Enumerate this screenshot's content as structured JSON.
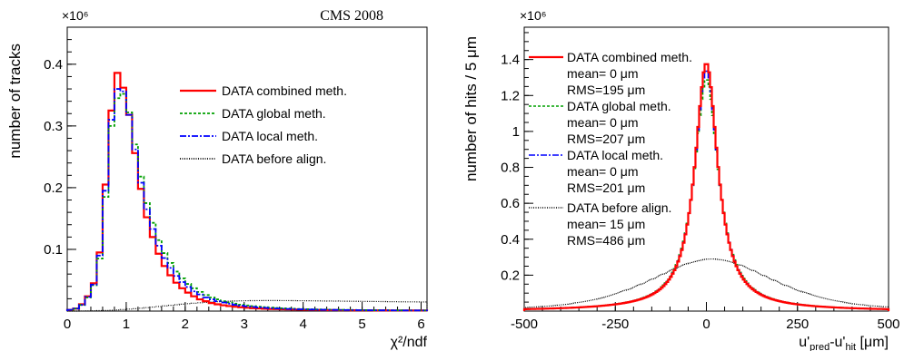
{
  "header": {
    "experiment_label": "CMS 2008"
  },
  "chart_data": [
    {
      "type": "line",
      "style": "histogram",
      "xlabel": "χ²/ndf",
      "ylabel": "number of tracks",
      "y_multiplier": "×10⁶",
      "xlim": [
        0,
        6.1
      ],
      "ylim": [
        0,
        0.46
      ],
      "xticks": [
        0,
        1,
        2,
        3,
        4,
        5,
        6
      ],
      "yticks": [
        0.1,
        0.2,
        0.3,
        0.4
      ],
      "legend_position": "top-right",
      "bin_edges": [
        0.0,
        0.1,
        0.2,
        0.3,
        0.4,
        0.5,
        0.6,
        0.7,
        0.8,
        0.9,
        1.0,
        1.1,
        1.2,
        1.3,
        1.4,
        1.5,
        1.6,
        1.7,
        1.8,
        1.9,
        2.0,
        2.1,
        2.2,
        2.3,
        2.4,
        2.5,
        2.6,
        2.7,
        2.8,
        2.9,
        3.0,
        3.1,
        3.2,
        3.3,
        3.4,
        3.5,
        3.6,
        3.7,
        3.8,
        3.9,
        4.0,
        4.1,
        4.2,
        4.3,
        4.4,
        4.5,
        4.6,
        4.7,
        4.8,
        4.9,
        5.0,
        5.1,
        5.2,
        5.3,
        5.4,
        5.5,
        5.6,
        5.7,
        5.8,
        5.9,
        6.0,
        6.1
      ],
      "series": [
        {
          "name": "DATA combined meth.",
          "color": "#ff0000",
          "dash": "solid",
          "values": [
            0.002,
            0.004,
            0.011,
            0.024,
            0.045,
            0.095,
            0.205,
            0.325,
            0.386,
            0.362,
            0.318,
            0.256,
            0.198,
            0.152,
            0.12,
            0.093,
            0.073,
            0.058,
            0.046,
            0.037,
            0.03,
            0.024,
            0.019,
            0.016,
            0.013,
            0.011,
            0.0095,
            0.0082,
            0.0071,
            0.0062,
            0.0054,
            0.0048,
            0.0043,
            0.0039,
            0.0035,
            0.0032,
            0.0029,
            0.0027,
            0.0025,
            0.0023,
            0.0021,
            0.002,
            0.0019,
            0.0018,
            0.0017,
            0.0016,
            0.0015,
            0.0014,
            0.0013,
            0.0013,
            0.0012,
            0.0012,
            0.0011,
            0.0011,
            0.001,
            0.001,
            0.001,
            0.0009,
            0.0009,
            0.0009,
            0.0009
          ]
        },
        {
          "name": "DATA global meth.",
          "color": "#00a000",
          "dash": "dot",
          "values": [
            0.002,
            0.004,
            0.01,
            0.022,
            0.042,
            0.085,
            0.185,
            0.3,
            0.345,
            0.352,
            0.322,
            0.27,
            0.218,
            0.175,
            0.143,
            0.115,
            0.094,
            0.078,
            0.064,
            0.053,
            0.044,
            0.037,
            0.031,
            0.026,
            0.022,
            0.019,
            0.016,
            0.014,
            0.012,
            0.0105,
            0.0092,
            0.0081,
            0.0072,
            0.0064,
            0.0057,
            0.0051,
            0.0046,
            0.0042,
            0.0038,
            0.0034,
            0.0031,
            0.0029,
            0.0027,
            0.0025,
            0.0023,
            0.0021,
            0.002,
            0.0019,
            0.0018,
            0.0017,
            0.0016,
            0.0015,
            0.0014,
            0.0013,
            0.0013,
            0.0012,
            0.0012,
            0.0011,
            0.0011,
            0.001,
            0.001
          ]
        },
        {
          "name": "DATA local meth.",
          "color": "#0000ff",
          "dash": "dashdot",
          "values": [
            0.002,
            0.004,
            0.01,
            0.023,
            0.043,
            0.09,
            0.195,
            0.31,
            0.36,
            0.356,
            0.318,
            0.262,
            0.208,
            0.165,
            0.133,
            0.106,
            0.086,
            0.07,
            0.057,
            0.047,
            0.039,
            0.032,
            0.027,
            0.022,
            0.019,
            0.016,
            0.014,
            0.012,
            0.0102,
            0.0088,
            0.0077,
            0.0068,
            0.006,
            0.0053,
            0.0047,
            0.0042,
            0.0038,
            0.0035,
            0.0032,
            0.0029,
            0.0027,
            0.0025,
            0.0023,
            0.0021,
            0.002,
            0.0019,
            0.0018,
            0.0017,
            0.0016,
            0.0015,
            0.0014,
            0.0013,
            0.0013,
            0.0012,
            0.0012,
            0.0011,
            0.0011,
            0.001,
            0.001,
            0.001,
            0.001
          ]
        },
        {
          "name": "DATA before align.",
          "color": "#000000",
          "dash": "finedot",
          "values": [
            0.0,
            0.0,
            0.0001,
            0.0002,
            0.0004,
            0.0007,
            0.001,
            0.0014,
            0.0019,
            0.0025,
            0.0032,
            0.0039,
            0.0047,
            0.0056,
            0.0065,
            0.0074,
            0.0084,
            0.0094,
            0.0103,
            0.0112,
            0.012,
            0.0128,
            0.0135,
            0.0141,
            0.0147,
            0.0152,
            0.0157,
            0.016,
            0.0163,
            0.0166,
            0.0168,
            0.0169,
            0.017,
            0.0171,
            0.0171,
            0.0171,
            0.017,
            0.017,
            0.0169,
            0.0168,
            0.0167,
            0.0166,
            0.0165,
            0.0164,
            0.0163,
            0.0162,
            0.0161,
            0.016,
            0.0159,
            0.0158,
            0.0157,
            0.0156,
            0.0155,
            0.0154,
            0.0153,
            0.0152,
            0.0151,
            0.015,
            0.015,
            0.0149,
            0.0148
          ]
        }
      ]
    },
    {
      "type": "line",
      "style": "histogram",
      "xlabel": "u'pred-u'hit [μm]",
      "xlabel_parts": {
        "p1": "u'",
        "sub1": "pred",
        "p2": "-u'",
        "sub2": "hit",
        "p3": " [μm]"
      },
      "ylabel": "number of hits / 5 μm",
      "y_multiplier": "×10⁶",
      "xlim": [
        -500,
        500
      ],
      "ylim": [
        0,
        1.58
      ],
      "xticks": [
        -500,
        -250,
        0,
        250,
        500
      ],
      "yticks": [
        0.2,
        0.4,
        0.6,
        0.8,
        1,
        1.2,
        1.4
      ],
      "legend_position": "top-left",
      "bin_width": 5,
      "series": [
        {
          "name": "DATA combined meth.",
          "color": "#ff0000",
          "dash": "solid",
          "mean": "mean= 0 μm",
          "rms": "RMS=195 μm",
          "peak": 1.39,
          "gamma": 38
        },
        {
          "name": "DATA global meth.",
          "color": "#00a000",
          "dash": "dot",
          "mean": "mean= 0 μm",
          "rms": "RMS=207 μm",
          "peak": 1.3,
          "gamma": 40.5
        },
        {
          "name": "DATA local meth.",
          "color": "#0000ff",
          "dash": "dashdot",
          "mean": "mean= 0 μm",
          "rms": "RMS=201 μm",
          "peak": 1.35,
          "gamma": 39
        },
        {
          "name": "DATA before align.",
          "color": "#000000",
          "dash": "finedot",
          "mean": "mean= 15 μm",
          "rms": "RMS=486 μm",
          "peak": 0.29,
          "center": 15,
          "sigma": 175,
          "tail": 0.5
        }
      ]
    }
  ]
}
